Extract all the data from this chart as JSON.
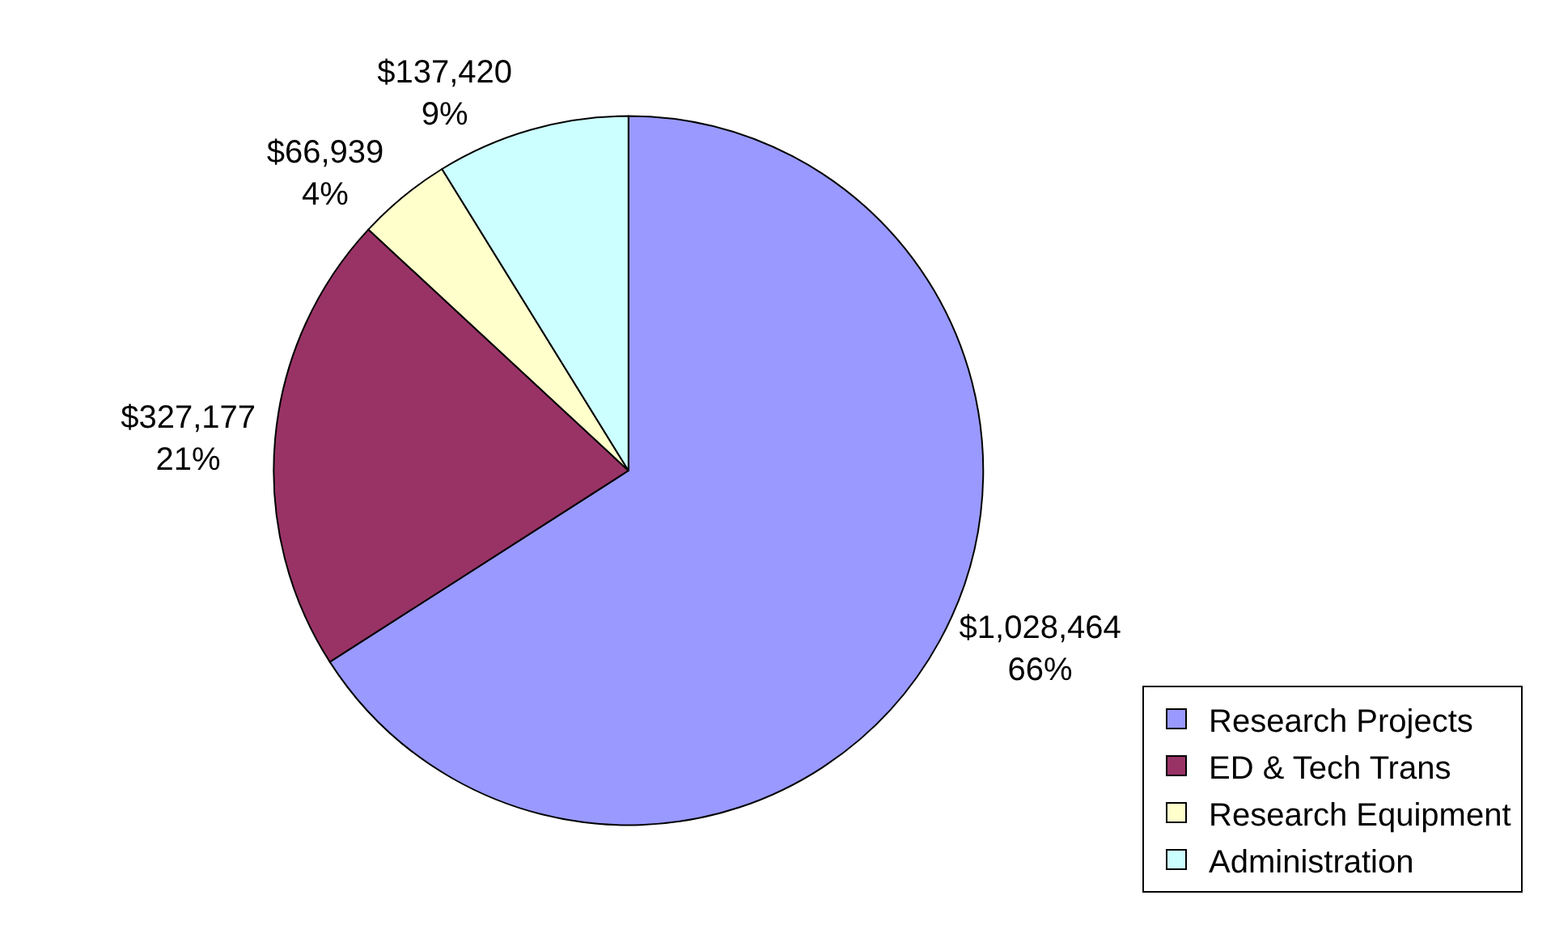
{
  "chart_data": {
    "type": "pie",
    "categories": [
      "Research Projects",
      "ED & Tech Trans",
      "Research Equipment",
      "Administration"
    ],
    "values": [
      1028464,
      327177,
      66939,
      137420
    ],
    "colors": [
      "#9999ff",
      "#993366",
      "#ffffcc",
      "#ccffff"
    ],
    "value_labels": [
      "$1,028,464\n66%",
      "$327,177\n21%",
      "$66,939\n4%",
      "$137,420\n9%"
    ],
    "legend": "bottom right"
  }
}
